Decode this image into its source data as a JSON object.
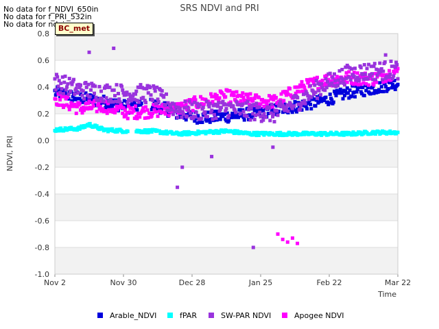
{
  "no_data_notes": [
    "No data for f_NDVI_650in",
    "No data for f_PRI_532in",
    "No data for ndvi"
  ],
  "badge_label": "BC_met",
  "chart_data": {
    "type": "scatter",
    "title": "SRS NDVI and PRI",
    "xlabel": "Time",
    "ylabel": "NDVI, PRI",
    "x_ticks": [
      "Nov 2",
      "Nov 30",
      "Dec 28",
      "Jan 25",
      "Feb 22",
      "Mar 22"
    ],
    "xlim": [
      "Nov 2",
      "Mar 22"
    ],
    "ylim": [
      -1.0,
      0.8
    ],
    "y_ticks": [
      -1.0,
      -0.8,
      -0.6,
      -0.4,
      -0.2,
      0.0,
      0.2,
      0.4,
      0.6,
      0.8
    ],
    "grid": true,
    "legend_position": "bottom",
    "series": [
      {
        "name": "Arable_NDVI",
        "color": "#0000dd",
        "approx_trend": [
          {
            "x": "Nov 2",
            "y": 0.36
          },
          {
            "x": "Nov 12",
            "y": 0.32
          },
          {
            "x": "Nov 22",
            "y": 0.29
          },
          {
            "x": "Dec 2",
            "y": 0.25
          },
          {
            "x": "Dec 12",
            "y": 0.27
          },
          {
            "x": "Dec 22",
            "y": 0.2
          },
          {
            "x": "Jan 1",
            "y": 0.17
          },
          {
            "x": "Jan 11",
            "y": 0.18
          },
          {
            "x": "Jan 21",
            "y": 0.2
          },
          {
            "x": "Jan 31",
            "y": 0.23
          },
          {
            "x": "Feb 10",
            "y": 0.26
          },
          {
            "x": "Feb 20",
            "y": 0.3
          },
          {
            "x": "Mar 2",
            "y": 0.36
          },
          {
            "x": "Mar 12",
            "y": 0.39
          },
          {
            "x": "Mar 22",
            "y": 0.43
          }
        ]
      },
      {
        "name": "fPAR",
        "color": "#00ffff",
        "approx_trend": [
          {
            "x": "Nov 2",
            "y": 0.08
          },
          {
            "x": "Nov 12",
            "y": 0.09
          },
          {
            "x": "Nov 16",
            "y": 0.12
          },
          {
            "x": "Nov 22",
            "y": 0.08
          },
          {
            "x": "Dec 2",
            "y": 0.07
          },
          {
            "x": "Dec 12",
            "y": 0.07
          },
          {
            "x": "Dec 22",
            "y": 0.05
          },
          {
            "x": "Jan 1",
            "y": 0.06
          },
          {
            "x": "Jan 11",
            "y": 0.07
          },
          {
            "x": "Jan 21",
            "y": 0.05
          },
          {
            "x": "Jan 31",
            "y": 0.05
          },
          {
            "x": "Feb 10",
            "y": 0.05
          },
          {
            "x": "Feb 20",
            "y": 0.05
          },
          {
            "x": "Mar 2",
            "y": 0.05
          },
          {
            "x": "Mar 12",
            "y": 0.06
          },
          {
            "x": "Mar 22",
            "y": 0.06
          }
        ]
      },
      {
        "name": "SW-PAR NDVI",
        "color": "#9933dd",
        "approx_trend": [
          {
            "x": "Nov 2",
            "y": 0.44
          },
          {
            "x": "Nov 12",
            "y": 0.38
          },
          {
            "x": "Nov 22",
            "y": 0.36
          },
          {
            "x": "Dec 2",
            "y": 0.35
          },
          {
            "x": "Dec 12",
            "y": 0.35
          },
          {
            "x": "Dec 22",
            "y": 0.23
          },
          {
            "x": "Jan 1",
            "y": 0.22
          },
          {
            "x": "Jan 11",
            "y": 0.24
          },
          {
            "x": "Jan 21",
            "y": 0.22
          },
          {
            "x": "Jan 31",
            "y": 0.2
          },
          {
            "x": "Feb 10",
            "y": 0.3
          },
          {
            "x": "Feb 20",
            "y": 0.42
          },
          {
            "x": "Mar 2",
            "y": 0.5
          },
          {
            "x": "Mar 12",
            "y": 0.52
          },
          {
            "x": "Mar 22",
            "y": 0.53
          }
        ],
        "outliers": [
          {
            "x": "Nov 16",
            "y": 0.66
          },
          {
            "x": "Nov 26",
            "y": 0.69
          },
          {
            "x": "Dec 22",
            "y": -0.35
          },
          {
            "x": "Dec 24",
            "y": -0.2
          },
          {
            "x": "Jan 5",
            "y": -0.12
          },
          {
            "x": "Jan 22",
            "y": -0.8
          },
          {
            "x": "Jan 30",
            "y": -0.05
          },
          {
            "x": "Mar 17",
            "y": 0.64
          }
        ]
      },
      {
        "name": "Apogee NDVI",
        "color": "#ff00ff",
        "approx_trend": [
          {
            "x": "Nov 2",
            "y": 0.32
          },
          {
            "x": "Nov 12",
            "y": 0.24
          },
          {
            "x": "Nov 22",
            "y": 0.26
          },
          {
            "x": "Dec 2",
            "y": 0.21
          },
          {
            "x": "Dec 12",
            "y": 0.22
          },
          {
            "x": "Dec 22",
            "y": 0.24
          },
          {
            "x": "Jan 1",
            "y": 0.29
          },
          {
            "x": "Jan 11",
            "y": 0.33
          },
          {
            "x": "Jan 21",
            "y": 0.3
          },
          {
            "x": "Jan 31",
            "y": 0.29
          },
          {
            "x": "Feb 10",
            "y": 0.39
          },
          {
            "x": "Feb 20",
            "y": 0.45
          },
          {
            "x": "Mar 2",
            "y": 0.47
          },
          {
            "x": "Mar 12",
            "y": 0.46
          },
          {
            "x": "Mar 22",
            "y": 0.52
          }
        ],
        "outliers": [
          {
            "x": "Feb 1",
            "y": -0.7
          },
          {
            "x": "Feb 3",
            "y": -0.74
          },
          {
            "x": "Feb 5",
            "y": -0.76
          },
          {
            "x": "Feb 7",
            "y": -0.73
          },
          {
            "x": "Feb 9",
            "y": -0.77
          }
        ]
      }
    ]
  }
}
